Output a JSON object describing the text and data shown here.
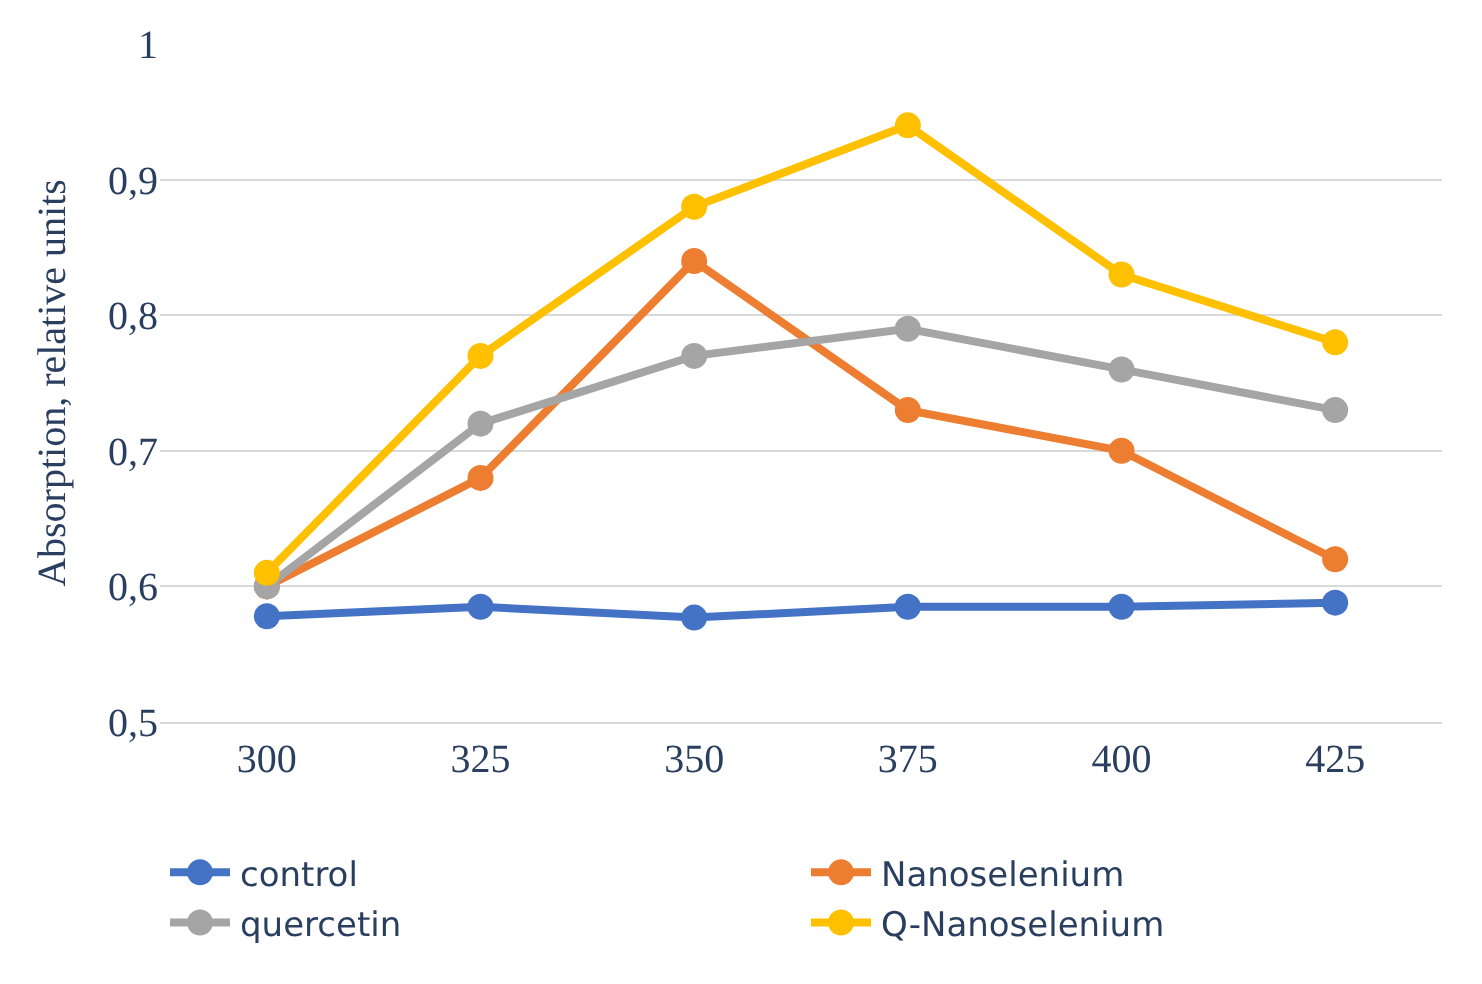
{
  "chart_data": {
    "type": "line",
    "ylabel": "Absorption, relative units",
    "categories": [
      "300",
      "325",
      "350",
      "375",
      "400",
      "425"
    ],
    "series": [
      {
        "name": "control",
        "color": "#4472c4",
        "values": [
          0.578,
          0.585,
          0.577,
          0.585,
          0.585,
          0.588
        ]
      },
      {
        "name": "Nanoselenium",
        "color": "#ed7d31",
        "values": [
          0.6,
          0.68,
          0.84,
          0.73,
          0.7,
          0.62
        ]
      },
      {
        "name": "quercetin",
        "color": "#a5a5a5",
        "values": [
          0.6,
          0.72,
          0.77,
          0.79,
          0.76,
          0.73
        ]
      },
      {
        "name": "Q-Nanoselenium",
        "color": "#ffc000",
        "values": [
          0.61,
          0.77,
          0.88,
          0.94,
          0.83,
          0.78
        ]
      }
    ],
    "ylim": [
      0.5,
      1
    ],
    "yticks": [
      {
        "value": 0.5,
        "label": "0,5"
      },
      {
        "value": 0.6,
        "label": "0,6"
      },
      {
        "value": 0.7,
        "label": "0,7"
      },
      {
        "value": 0.8,
        "label": "0,8"
      },
      {
        "value": 0.9,
        "label": "0,9"
      },
      {
        "value": 1,
        "label": "1"
      }
    ],
    "grid": "y",
    "legend": "bottom",
    "marker": "circle",
    "line_style": "solid"
  }
}
